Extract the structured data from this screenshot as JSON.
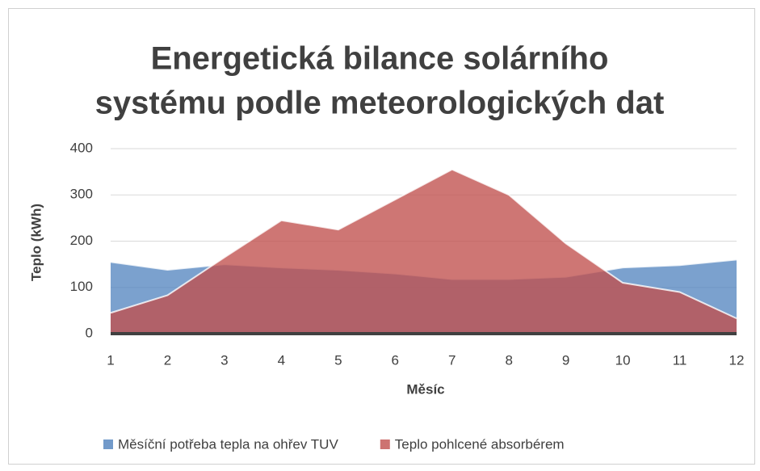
{
  "chart_data": {
    "type": "area",
    "title": [
      "Energetická bilance solárního",
      "systému podle meteorologických dat"
    ],
    "xlabel": "Měsíc",
    "ylabel": "Teplo (kWh)",
    "x": [
      1,
      2,
      3,
      4,
      5,
      6,
      7,
      8,
      9,
      10,
      11,
      12
    ],
    "xlim": [
      1,
      12
    ],
    "xticks": [
      1,
      2,
      3,
      4,
      5,
      6,
      7,
      8,
      9,
      10,
      11,
      12
    ],
    "ylim": [
      0,
      400
    ],
    "yticks": [
      0,
      100,
      200,
      300,
      400
    ],
    "grid": true,
    "legend": "bottom",
    "series": [
      {
        "name": "Měsíční potřeba tepla na ohřev TUV",
        "color": "#4f81bd",
        "values": [
          155,
          138,
          150,
          143,
          138,
          130,
          118,
          118,
          123,
          143,
          148,
          160
        ]
      },
      {
        "name": "Teplo pohlcené absorbérem",
        "color": "#c0504d",
        "values": [
          45,
          83,
          165,
          245,
          225,
          290,
          355,
          300,
          195,
          110,
          90,
          33
        ]
      }
    ]
  }
}
